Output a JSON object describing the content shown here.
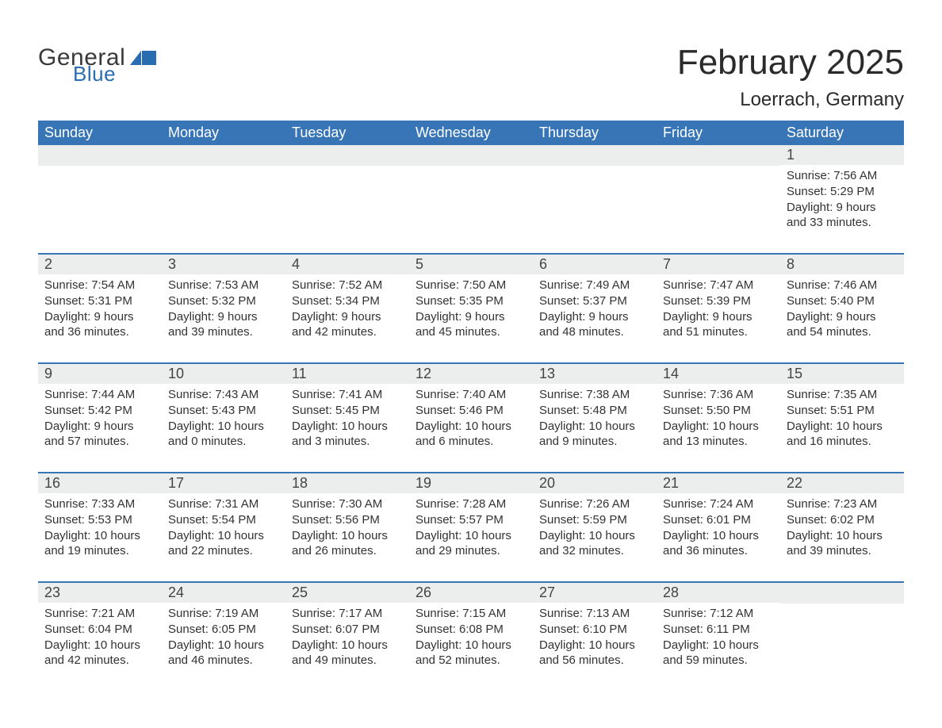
{
  "logo": {
    "general": "General",
    "blue": "Blue"
  },
  "title": "February 2025",
  "location": "Loerrach, Germany",
  "colors": {
    "header_bg": "#3775b7",
    "header_text": "#ffffff",
    "row_separator": "#3775b7",
    "daynum_bg": "#eceded",
    "body_text": "#333333",
    "logo_blue": "#2a6cb2",
    "logo_gray": "#3a3a3a",
    "page_bg": "#ffffff"
  },
  "typography": {
    "title_fontsize": 44,
    "location_fontsize": 24,
    "header_fontsize": 18,
    "daynum_fontsize": 18,
    "body_fontsize": 15
  },
  "structure": {
    "type": "calendar-table",
    "columns": 7,
    "rows": 5,
    "column_headers": [
      "Sunday",
      "Monday",
      "Tuesday",
      "Wednesday",
      "Thursday",
      "Friday",
      "Saturday"
    ]
  },
  "weeks": [
    [
      null,
      null,
      null,
      null,
      null,
      null,
      {
        "n": "1",
        "sunrise": "Sunrise: 7:56 AM",
        "sunset": "Sunset: 5:29 PM",
        "day1": "Daylight: 9 hours",
        "day2": "and 33 minutes."
      }
    ],
    [
      {
        "n": "2",
        "sunrise": "Sunrise: 7:54 AM",
        "sunset": "Sunset: 5:31 PM",
        "day1": "Daylight: 9 hours",
        "day2": "and 36 minutes."
      },
      {
        "n": "3",
        "sunrise": "Sunrise: 7:53 AM",
        "sunset": "Sunset: 5:32 PM",
        "day1": "Daylight: 9 hours",
        "day2": "and 39 minutes."
      },
      {
        "n": "4",
        "sunrise": "Sunrise: 7:52 AM",
        "sunset": "Sunset: 5:34 PM",
        "day1": "Daylight: 9 hours",
        "day2": "and 42 minutes."
      },
      {
        "n": "5",
        "sunrise": "Sunrise: 7:50 AM",
        "sunset": "Sunset: 5:35 PM",
        "day1": "Daylight: 9 hours",
        "day2": "and 45 minutes."
      },
      {
        "n": "6",
        "sunrise": "Sunrise: 7:49 AM",
        "sunset": "Sunset: 5:37 PM",
        "day1": "Daylight: 9 hours",
        "day2": "and 48 minutes."
      },
      {
        "n": "7",
        "sunrise": "Sunrise: 7:47 AM",
        "sunset": "Sunset: 5:39 PM",
        "day1": "Daylight: 9 hours",
        "day2": "and 51 minutes."
      },
      {
        "n": "8",
        "sunrise": "Sunrise: 7:46 AM",
        "sunset": "Sunset: 5:40 PM",
        "day1": "Daylight: 9 hours",
        "day2": "and 54 minutes."
      }
    ],
    [
      {
        "n": "9",
        "sunrise": "Sunrise: 7:44 AM",
        "sunset": "Sunset: 5:42 PM",
        "day1": "Daylight: 9 hours",
        "day2": "and 57 minutes."
      },
      {
        "n": "10",
        "sunrise": "Sunrise: 7:43 AM",
        "sunset": "Sunset: 5:43 PM",
        "day1": "Daylight: 10 hours",
        "day2": "and 0 minutes."
      },
      {
        "n": "11",
        "sunrise": "Sunrise: 7:41 AM",
        "sunset": "Sunset: 5:45 PM",
        "day1": "Daylight: 10 hours",
        "day2": "and 3 minutes."
      },
      {
        "n": "12",
        "sunrise": "Sunrise: 7:40 AM",
        "sunset": "Sunset: 5:46 PM",
        "day1": "Daylight: 10 hours",
        "day2": "and 6 minutes."
      },
      {
        "n": "13",
        "sunrise": "Sunrise: 7:38 AM",
        "sunset": "Sunset: 5:48 PM",
        "day1": "Daylight: 10 hours",
        "day2": "and 9 minutes."
      },
      {
        "n": "14",
        "sunrise": "Sunrise: 7:36 AM",
        "sunset": "Sunset: 5:50 PM",
        "day1": "Daylight: 10 hours",
        "day2": "and 13 minutes."
      },
      {
        "n": "15",
        "sunrise": "Sunrise: 7:35 AM",
        "sunset": "Sunset: 5:51 PM",
        "day1": "Daylight: 10 hours",
        "day2": "and 16 minutes."
      }
    ],
    [
      {
        "n": "16",
        "sunrise": "Sunrise: 7:33 AM",
        "sunset": "Sunset: 5:53 PM",
        "day1": "Daylight: 10 hours",
        "day2": "and 19 minutes."
      },
      {
        "n": "17",
        "sunrise": "Sunrise: 7:31 AM",
        "sunset": "Sunset: 5:54 PM",
        "day1": "Daylight: 10 hours",
        "day2": "and 22 minutes."
      },
      {
        "n": "18",
        "sunrise": "Sunrise: 7:30 AM",
        "sunset": "Sunset: 5:56 PM",
        "day1": "Daylight: 10 hours",
        "day2": "and 26 minutes."
      },
      {
        "n": "19",
        "sunrise": "Sunrise: 7:28 AM",
        "sunset": "Sunset: 5:57 PM",
        "day1": "Daylight: 10 hours",
        "day2": "and 29 minutes."
      },
      {
        "n": "20",
        "sunrise": "Sunrise: 7:26 AM",
        "sunset": "Sunset: 5:59 PM",
        "day1": "Daylight: 10 hours",
        "day2": "and 32 minutes."
      },
      {
        "n": "21",
        "sunrise": "Sunrise: 7:24 AM",
        "sunset": "Sunset: 6:01 PM",
        "day1": "Daylight: 10 hours",
        "day2": "and 36 minutes."
      },
      {
        "n": "22",
        "sunrise": "Sunrise: 7:23 AM",
        "sunset": "Sunset: 6:02 PM",
        "day1": "Daylight: 10 hours",
        "day2": "and 39 minutes."
      }
    ],
    [
      {
        "n": "23",
        "sunrise": "Sunrise: 7:21 AM",
        "sunset": "Sunset: 6:04 PM",
        "day1": "Daylight: 10 hours",
        "day2": "and 42 minutes."
      },
      {
        "n": "24",
        "sunrise": "Sunrise: 7:19 AM",
        "sunset": "Sunset: 6:05 PM",
        "day1": "Daylight: 10 hours",
        "day2": "and 46 minutes."
      },
      {
        "n": "25",
        "sunrise": "Sunrise: 7:17 AM",
        "sunset": "Sunset: 6:07 PM",
        "day1": "Daylight: 10 hours",
        "day2": "and 49 minutes."
      },
      {
        "n": "26",
        "sunrise": "Sunrise: 7:15 AM",
        "sunset": "Sunset: 6:08 PM",
        "day1": "Daylight: 10 hours",
        "day2": "and 52 minutes."
      },
      {
        "n": "27",
        "sunrise": "Sunrise: 7:13 AM",
        "sunset": "Sunset: 6:10 PM",
        "day1": "Daylight: 10 hours",
        "day2": "and 56 minutes."
      },
      {
        "n": "28",
        "sunrise": "Sunrise: 7:12 AM",
        "sunset": "Sunset: 6:11 PM",
        "day1": "Daylight: 10 hours",
        "day2": "and 59 minutes."
      },
      null
    ]
  ]
}
